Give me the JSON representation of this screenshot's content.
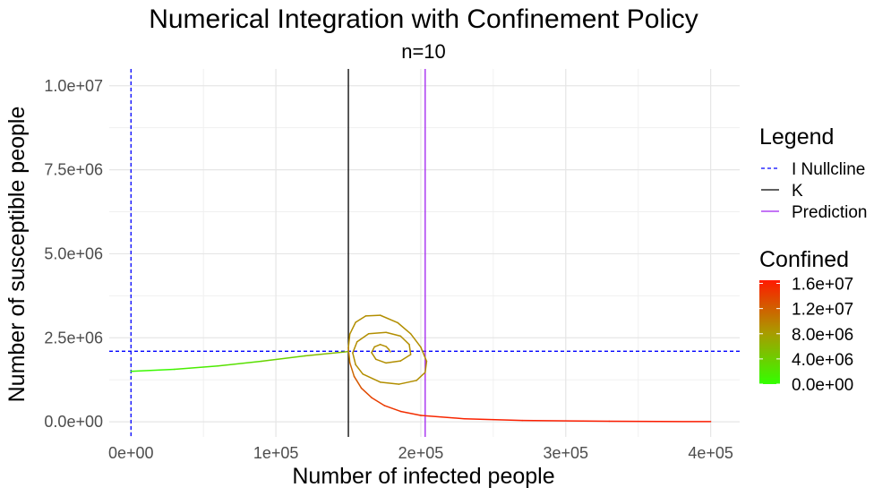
{
  "chart_data": {
    "type": "line",
    "title": "Numerical Integration with Confinement Policy",
    "subtitle": "n=10",
    "xlabel": "Number of infected people",
    "ylabel": "Number of susceptible people",
    "xlim": [
      -15000,
      420000
    ],
    "ylim": [
      -450000,
      10500000
    ],
    "x_ticks": [
      0,
      100000,
      200000,
      300000,
      400000
    ],
    "x_tick_labels": [
      "0e+00",
      "1e+05",
      "2e+05",
      "3e+05",
      "4e+05"
    ],
    "y_ticks": [
      0,
      2500000,
      5000000,
      7500000,
      10000000
    ],
    "y_tick_labels": [
      "0.0e+00",
      "2.5e+06",
      "5.0e+06",
      "7.5e+06",
      "1.0e+07"
    ],
    "grid": true,
    "reference_lines": [
      {
        "legend": "I Nullcline",
        "orientation": "vertical",
        "value": 0,
        "color": "#0000ff",
        "style": "dashed"
      },
      {
        "legend": "I Nullcline",
        "orientation": "horizontal",
        "value": 2100000,
        "color": "#0000ff",
        "style": "dashed"
      },
      {
        "legend": "K",
        "orientation": "vertical",
        "value": 150000,
        "color": "#000000",
        "style": "solid"
      },
      {
        "legend": "Prediction",
        "orientation": "vertical",
        "value": 203000,
        "color": "#a020f0",
        "style": "solid"
      }
    ],
    "trajectories": [
      {
        "colour_label": "Confined",
        "points": [
          [
            0,
            1500000,
            0
          ],
          [
            30000,
            1560000,
            1000000
          ],
          [
            60000,
            1660000,
            2000000
          ],
          [
            90000,
            1800000,
            3000000
          ],
          [
            120000,
            1960000,
            4500000
          ],
          [
            150000,
            2090000,
            6500000
          ]
        ]
      },
      {
        "colour_label": "Confined",
        "points": [
          [
            179000,
            2080000,
            9000000
          ],
          [
            178000,
            2150000,
            9000000
          ],
          [
            176000,
            2240000,
            9000000
          ],
          [
            172000,
            2300000,
            9000000
          ],
          [
            168000,
            2230000,
            9000000
          ],
          [
            166000,
            2060000,
            9000000
          ],
          [
            169000,
            1860000,
            9000000
          ],
          [
            176000,
            1750000,
            9000000
          ],
          [
            186000,
            1810000,
            9000000
          ],
          [
            193000,
            2000000,
            9000000
          ],
          [
            192000,
            2300000,
            9000000
          ],
          [
            186000,
            2550000,
            9000000
          ],
          [
            176000,
            2660000,
            9000000
          ],
          [
            164000,
            2620000,
            9000000
          ],
          [
            156000,
            2380000,
            9000000
          ],
          [
            153000,
            2050000,
            9000000
          ],
          [
            155000,
            1700000,
            9000000
          ],
          [
            160000,
            1420000,
            9000000
          ],
          [
            172000,
            1180000,
            9000000
          ],
          [
            185000,
            1120000,
            9000000
          ],
          [
            197000,
            1230000,
            9000000
          ],
          [
            203000,
            1470000,
            9000000
          ],
          [
            204000,
            1800000,
            9000000
          ],
          [
            200000,
            2220000,
            9000000
          ],
          [
            193000,
            2620000,
            9000000
          ],
          [
            184000,
            2950000,
            9000000
          ],
          [
            172000,
            3170000,
            9000000
          ],
          [
            162000,
            3150000,
            9000000
          ],
          [
            155000,
            2960000,
            9000000
          ],
          [
            151000,
            2610000,
            9000000
          ],
          [
            150000,
            2200000,
            9000000
          ],
          [
            151000,
            1760000,
            11000000
          ],
          [
            154000,
            1350000,
            12000000
          ],
          [
            159000,
            1000000,
            13000000
          ],
          [
            166000,
            720000,
            14000000
          ],
          [
            175000,
            480000,
            14500000
          ],
          [
            186000,
            310000,
            15000000
          ],
          [
            200000,
            190000,
            15500000
          ],
          [
            230000,
            90000,
            16000000
          ],
          [
            270000,
            40000,
            16200000
          ],
          [
            330000,
            15000,
            16300000
          ],
          [
            400000,
            5000,
            16400000
          ]
        ]
      }
    ],
    "legend": {
      "title": "Legend",
      "items": [
        {
          "label": "I Nullcline",
          "color": "#0000ff",
          "style": "dashed"
        },
        {
          "label": "K",
          "color": "#000000",
          "style": "solid"
        },
        {
          "label": "Prediction",
          "color": "#a020f0",
          "style": "solid"
        }
      ],
      "placement": "right"
    },
    "colorbar": {
      "title": "Confined",
      "min": 0,
      "max": 16500000,
      "ticks": [
        16000000,
        12000000,
        8000000,
        4000000,
        0
      ],
      "labels": [
        "1.6e+07",
        "1.2e+07",
        "8.0e+06",
        "4.0e+06",
        "0.0e+00"
      ],
      "low_color": "#33ff00",
      "high_color": "#ff1a00",
      "placement": "right"
    }
  }
}
